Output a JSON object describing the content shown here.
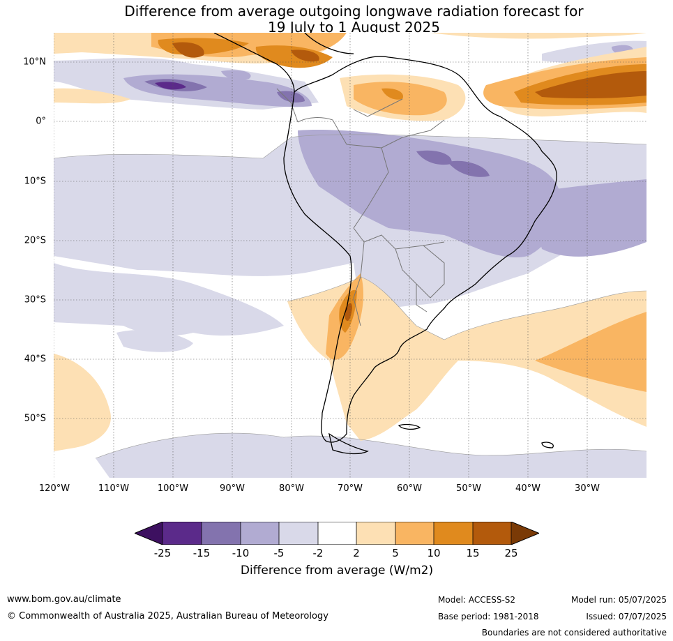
{
  "title": {
    "line1": "Difference from average outgoing longwave radiation forecast for",
    "line2": "19 July to 1 August 2025"
  },
  "map": {
    "lat_labels": [
      "10°N",
      "0°",
      "10°S",
      "20°S",
      "30°S",
      "40°S",
      "50°S"
    ],
    "lon_labels": [
      "120°W",
      "110°W",
      "100°W",
      "90°W",
      "80°W",
      "70°W",
      "60°W",
      "50°W",
      "40°W",
      "30°W"
    ],
    "colors": {
      "neg25": "#3d1060",
      "neg15": "#5b2a8a",
      "neg10": "#8373ae",
      "neg5": "#b1abd2",
      "neg2": "#d9d9e9",
      "zero": "#ffffff",
      "pos2": "#fde0b4",
      "pos5": "#f9b562",
      "pos10": "#e08a1e",
      "pos15": "#b35a0c",
      "pos25": "#7a3a06",
      "coast": "#000000",
      "border": "#777777",
      "grid": "#444444"
    }
  },
  "colorbar": {
    "ticks": [
      "-25",
      "-15",
      "-10",
      "-5",
      "-2",
      "2",
      "5",
      "10",
      "15",
      "25"
    ],
    "label": "Difference from average (W/m2)"
  },
  "footer": {
    "website": "www.bom.gov.au/climate",
    "copyright": "© Commonwealth of Australia 2025, Australian Bureau of Meteorology",
    "model": "Model: ACCESS-S2",
    "base_period": "Base period: 1981-2018",
    "model_run": "Model run: 05/07/2025",
    "issued": "Issued: 07/07/2025",
    "disclaimer": "Boundaries are not considered authoritative"
  }
}
